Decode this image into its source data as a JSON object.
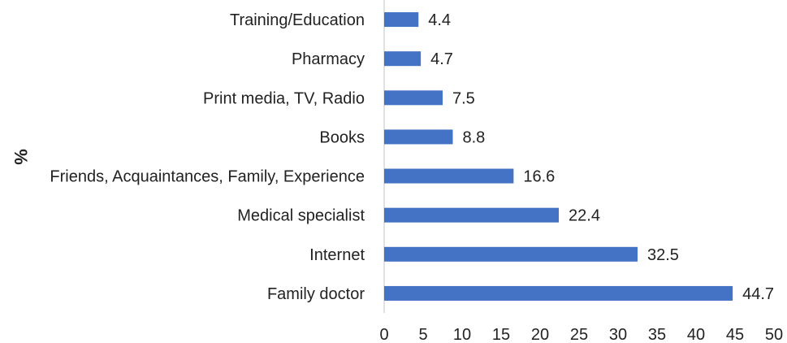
{
  "chart_data": {
    "type": "bar",
    "orientation": "horizontal",
    "title": "",
    "xlabel": "",
    "ylabel": "%",
    "categories": [
      "Family doctor",
      "Internet",
      "Medical specialist",
      "Friends, Acquaintances, Family, Experience",
      "Books",
      "Print media, TV, Radio",
      "Pharmacy",
      "Training/Education"
    ],
    "values": [
      44.7,
      32.5,
      22.4,
      16.6,
      8.8,
      7.5,
      4.7,
      4.4
    ],
    "data_labels": [
      "44.7",
      "32.5",
      "22.4",
      "16.6",
      "8.8",
      "7.5",
      "4.7",
      "4.4"
    ],
    "xlim": [
      0,
      50
    ],
    "xticks": [
      "0",
      "5",
      "10",
      "15",
      "20",
      "25",
      "30",
      "35",
      "40",
      "45",
      "50"
    ],
    "grid": false,
    "legend": "none",
    "bar_color": "#4472C4",
    "axis_color": "#D9D9D9"
  }
}
